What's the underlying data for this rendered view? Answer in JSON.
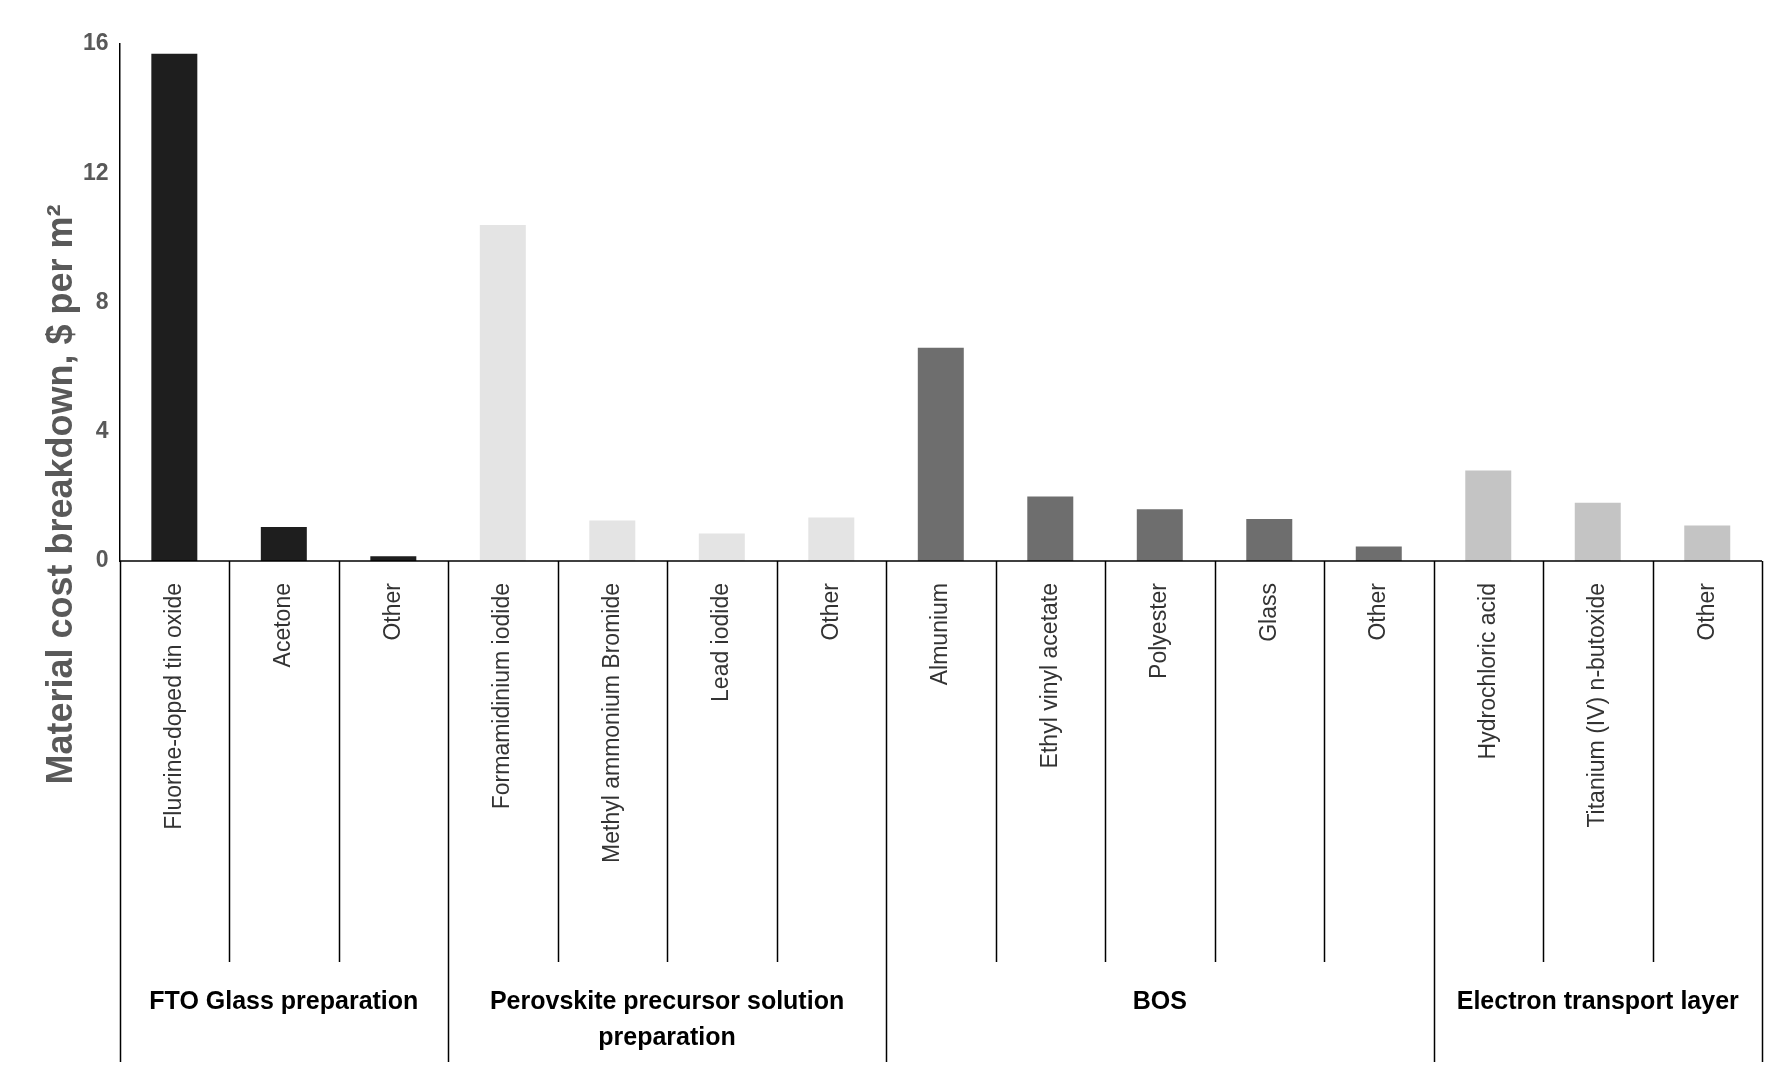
{
  "chart_data": {
    "type": "bar",
    "ylabel": "Material cost breakdown, $ per m²",
    "categories": [
      "Fluorine-doped tin oxide",
      "Acetone",
      "Other",
      "Formamidinium iodide",
      "Methyl ammonium Bromide",
      "Lead iodide",
      "Other",
      "Almunium",
      "Ethyl vinyl acetate",
      "Polyester",
      "Glass",
      "Other",
      "Hydrochloric acid",
      "Titanium (IV) n-butoxide",
      "Other"
    ],
    "values": [
      15.7,
      1.05,
      0.15,
      10.4,
      1.25,
      0.85,
      1.35,
      6.6,
      2.0,
      1.6,
      1.3,
      0.45,
      2.8,
      1.8,
      1.1
    ],
    "colors": [
      "#1e1e1e",
      "#1e1e1e",
      "#1e1e1e",
      "#e4e4e4",
      "#e4e4e4",
      "#e4e4e4",
      "#e4e4e4",
      "#6e6e6e",
      "#6e6e6e",
      "#6e6e6e",
      "#6e6e6e",
      "#6e6e6e",
      "#c4c4c4",
      "#c4c4c4",
      "#c4c4c4"
    ],
    "ylim": [
      0,
      16
    ],
    "yticks": [
      0,
      4,
      8,
      12,
      16
    ],
    "grid": false,
    "legend": false,
    "annotations": [
      "FTO Glass preparation",
      "Perovskite precursor solution preparation",
      "BOS",
      "Electron transport layer"
    ]
  }
}
